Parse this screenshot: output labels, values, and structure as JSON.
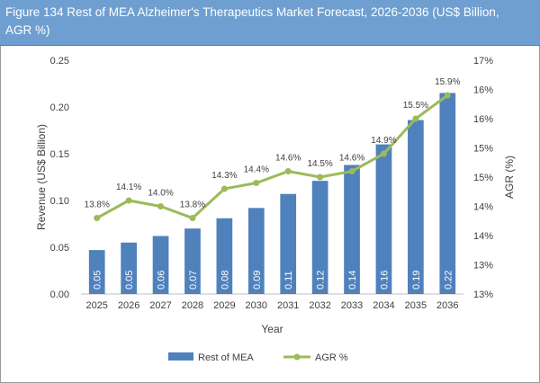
{
  "title": "Figure 134 Rest of MEA  Alzheimer's Therapeutics Market Forecast, 2026-2036 (US$ Billion, AGR %)",
  "chart_data": {
    "type": "bar+line",
    "categories": [
      "2025",
      "2026",
      "2027",
      "2028",
      "2029",
      "2030",
      "2031",
      "2032",
      "2033",
      "2034",
      "2035",
      "2036"
    ],
    "series": [
      {
        "name": "Rest of MEA",
        "type": "bar",
        "axis": "left",
        "color": "#4f81bd",
        "values": [
          0.047,
          0.055,
          0.062,
          0.07,
          0.081,
          0.092,
          0.107,
          0.121,
          0.138,
          0.16,
          0.186,
          0.215
        ],
        "labels": [
          "0.05",
          "0.05",
          "0.06",
          "0.07",
          "0.08",
          "0.09",
          "0.11",
          "0.12",
          "0.14",
          "0.16",
          "0.19",
          "0.22"
        ]
      },
      {
        "name": "AGR %",
        "type": "line",
        "axis": "right",
        "color": "#9bbb59",
        "values": [
          13.8,
          14.1,
          14.0,
          13.8,
          14.3,
          14.4,
          14.6,
          14.5,
          14.6,
          14.9,
          15.5,
          15.9
        ],
        "labels": [
          "13.8%",
          "14.1%",
          "14.0%",
          "13.8%",
          "14.3%",
          "14.4%",
          "14.6%",
          "14.5%",
          "14.6%",
          "14.9%",
          "15.5%",
          "15.9%"
        ]
      }
    ],
    "xlabel": "Year",
    "ylabel": "Revenue (US$ Billion)",
    "y2label": "AGR (%)",
    "ylim": [
      0,
      0.25
    ],
    "yticks": [
      "0.00",
      "0.05",
      "0.10",
      "0.15",
      "0.20",
      "0.25"
    ],
    "y2lim": [
      12.5,
      16.5
    ],
    "y2ticks": [
      "13%",
      "13%",
      "14%",
      "14%",
      "15%",
      "15%",
      "16%",
      "16%",
      "17%"
    ],
    "grid": false,
    "legend": "bottom"
  }
}
